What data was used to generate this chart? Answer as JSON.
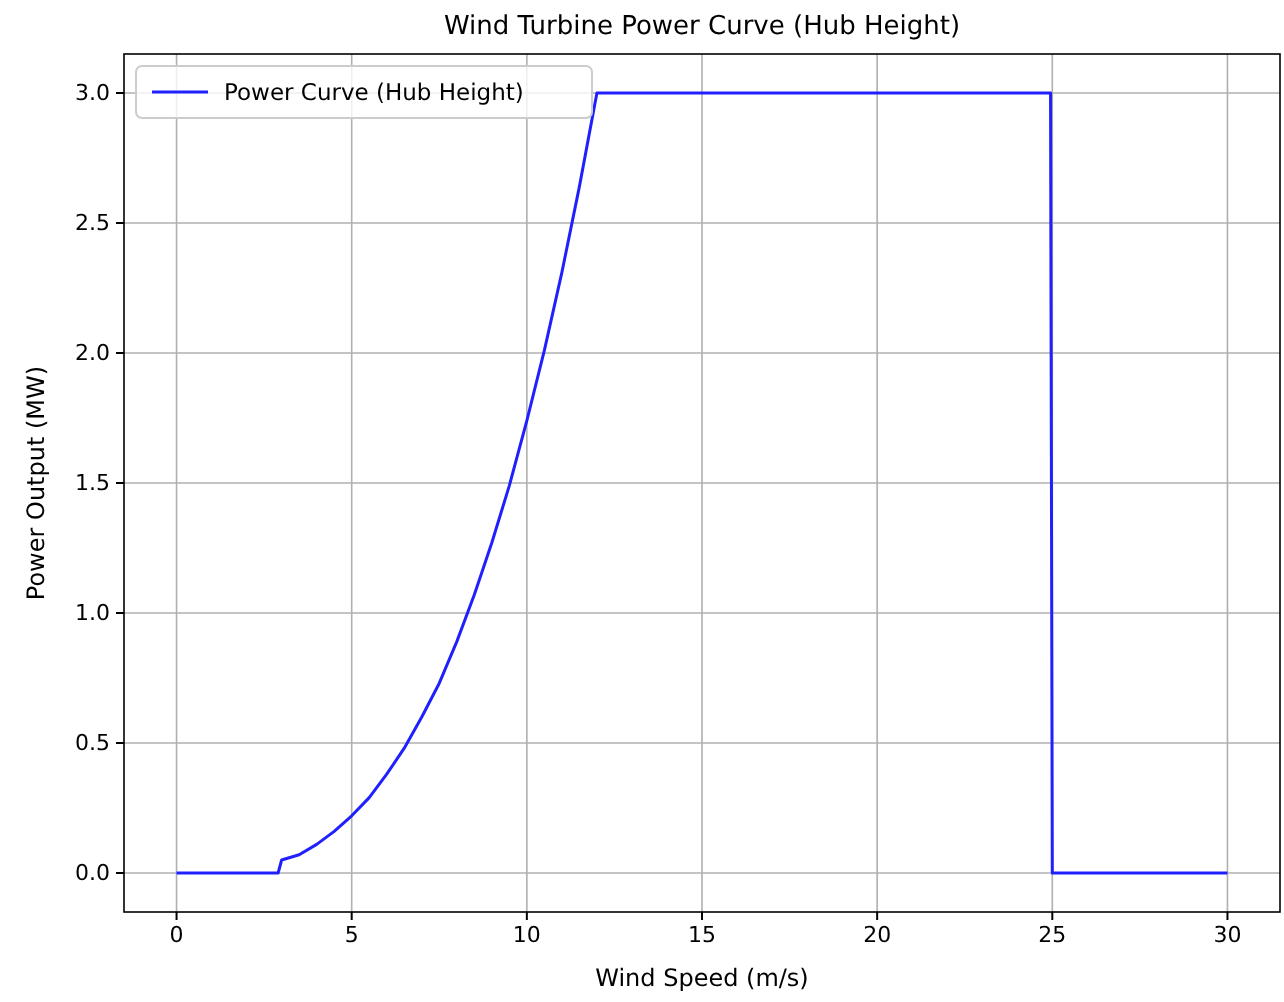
{
  "chart_data": {
    "type": "line",
    "title": "Wind Turbine Power Curve (Hub Height)",
    "xlabel": "Wind Speed (m/s)",
    "ylabel": "Power Output (MW)",
    "series": [
      {
        "name": "Power Curve (Hub Height)",
        "color": "#2020ff",
        "x": [
          0,
          2.9,
          3,
          3.5,
          4,
          4.5,
          5,
          5.5,
          6,
          6.5,
          7,
          7.5,
          8,
          8.5,
          9,
          9.5,
          10,
          10.5,
          11,
          11.5,
          12,
          24.95,
          25,
          30
        ],
        "values": [
          0,
          0,
          0.05,
          0.07,
          0.11,
          0.16,
          0.22,
          0.29,
          0.38,
          0.48,
          0.6,
          0.73,
          0.89,
          1.07,
          1.27,
          1.49,
          1.74,
          2.01,
          2.31,
          2.64,
          3.0,
          3.0,
          0,
          0
        ]
      }
    ],
    "xlim": [
      -1.5,
      31.5
    ],
    "xticks": [
      0,
      5,
      10,
      15,
      20,
      25,
      30
    ],
    "ylim": [
      -0.15,
      3.15
    ],
    "yticks": [
      {
        "value": 0,
        "label": "0.0"
      },
      {
        "value": 0.5,
        "label": "0.5"
      },
      {
        "value": 1,
        "label": "1.0"
      },
      {
        "value": 1.5,
        "label": "1.5"
      },
      {
        "value": 2,
        "label": "2.0"
      },
      {
        "value": 2.5,
        "label": "2.5"
      },
      {
        "value": 3,
        "label": "3.0"
      }
    ],
    "grid": true,
    "legend": "top left",
    "line_style": "solid",
    "marker": "none"
  }
}
